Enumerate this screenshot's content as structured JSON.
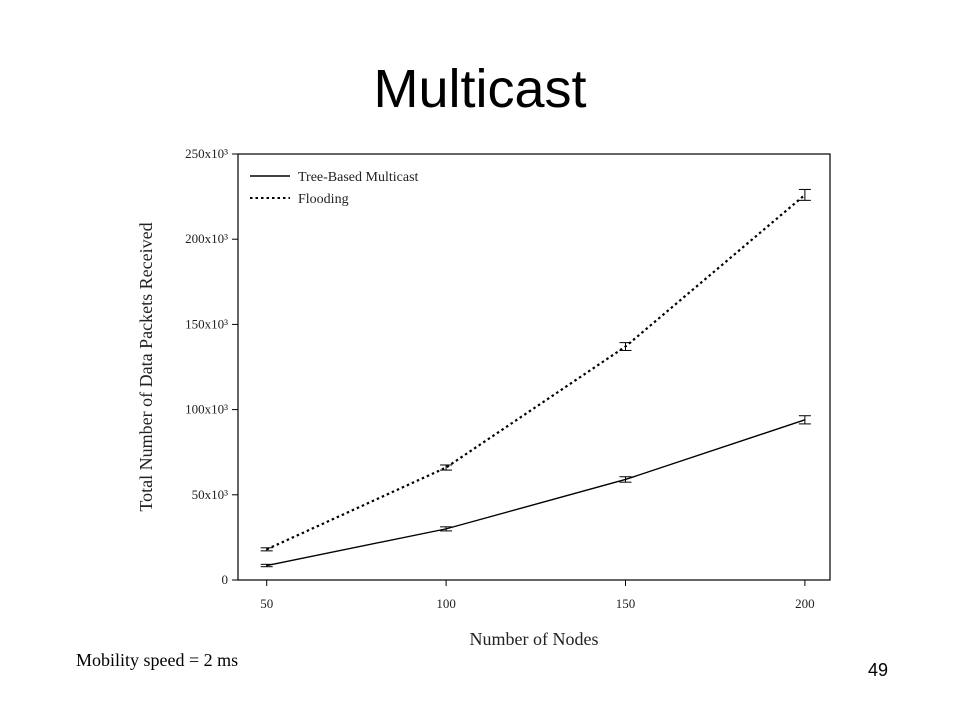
{
  "slide": {
    "title": "Multicast",
    "footnote": "Mobility speed = 2 ms",
    "page_number": "49"
  },
  "chart_data": {
    "type": "line",
    "xlabel": "Number of Nodes",
    "ylabel": "Total Number of Data Packets Received",
    "x": [
      50,
      100,
      150,
      200
    ],
    "x_ticks": [
      "50",
      "100",
      "150",
      "200"
    ],
    "y_ticks": [
      {
        "value": 0,
        "label": "0"
      },
      {
        "value": 50000,
        "label": "50x10³"
      },
      {
        "value": 100000,
        "label": "100x10³"
      },
      {
        "value": 150000,
        "label": "150x10³"
      },
      {
        "value": 200000,
        "label": "200x10³"
      },
      {
        "value": 250000,
        "label": "250x10³"
      }
    ],
    "xlim": [
      42,
      207
    ],
    "ylim": [
      0,
      250000
    ],
    "grid": false,
    "legend_position": "top-left",
    "series": [
      {
        "name": "Tree-Based Multicast",
        "style": "solid",
        "values": [
          8500,
          30000,
          59000,
          94000
        ],
        "errors": [
          700,
          1200,
          1600,
          2400
        ]
      },
      {
        "name": "Flooding",
        "style": "dotted",
        "values": [
          18000,
          66000,
          137000,
          226000
        ],
        "errors": [
          900,
          1500,
          2300,
          3200
        ]
      }
    ]
  }
}
